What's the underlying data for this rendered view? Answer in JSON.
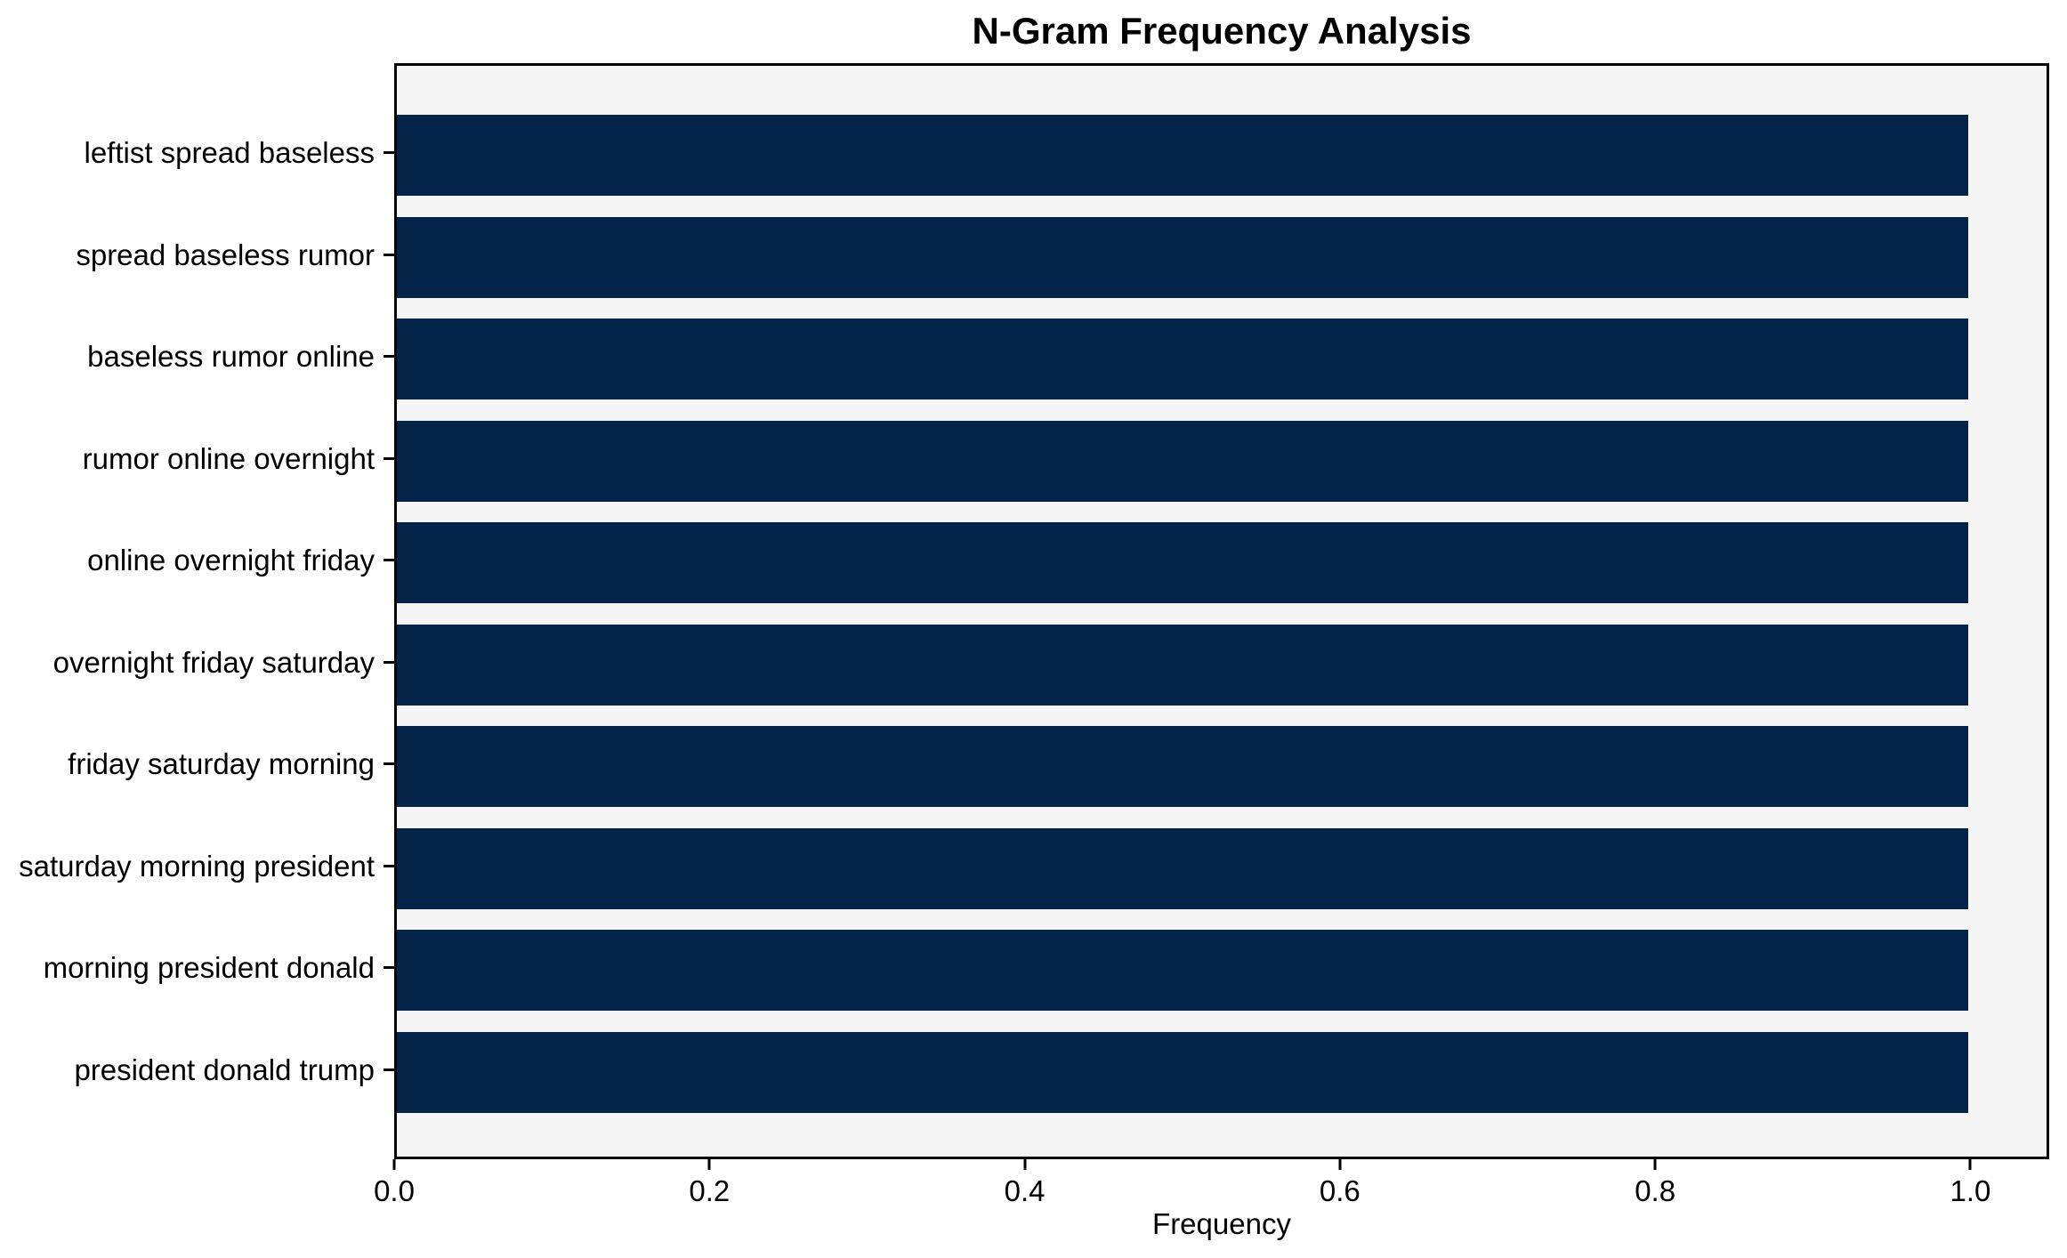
{
  "chart_data": {
    "type": "bar",
    "orientation": "horizontal",
    "title": "N-Gram Frequency Analysis",
    "xlabel": "Frequency",
    "ylabel": "",
    "categories": [
      "leftist spread baseless",
      "spread baseless rumor",
      "baseless rumor online",
      "rumor online overnight",
      "online overnight friday",
      "overnight friday saturday",
      "friday saturday morning",
      "saturday morning president",
      "morning president donald",
      "president donald trump"
    ],
    "values": [
      1.0,
      1.0,
      1.0,
      1.0,
      1.0,
      1.0,
      1.0,
      1.0,
      1.0,
      1.0
    ],
    "xlim": [
      0,
      1.05
    ],
    "xticks": [
      0.0,
      0.2,
      0.4,
      0.6,
      0.8,
      1.0
    ],
    "xtick_labels": [
      "0.0",
      "0.2",
      "0.4",
      "0.6",
      "0.8",
      "1.0"
    ],
    "grid": false,
    "legend": "none",
    "colors": {
      "bar": "#032349",
      "plot_background": "#f5f5f6",
      "figure_background": "#ffffff",
      "spine": "#000000",
      "text": "#000000"
    }
  }
}
